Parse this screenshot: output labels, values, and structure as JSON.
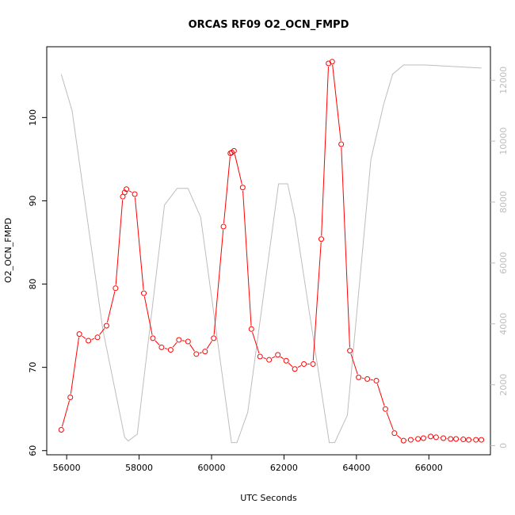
{
  "chart_data": {
    "type": "line",
    "title": "ORCAS RF09 O2_OCN_FMPD",
    "xlabel": "UTC Seconds",
    "ylabel": "O2_OCN_FMPD",
    "xlim": [
      55450,
      67700
    ],
    "ylim": [
      59.5,
      108.5
    ],
    "y2lim": [
      -300,
      13100
    ],
    "x_ticks": [
      56000,
      58000,
      60000,
      62000,
      64000,
      66000
    ],
    "y_ticks": [
      60,
      70,
      80,
      90,
      100
    ],
    "y2_ticks": [
      0,
      2000,
      4000,
      6000,
      8000,
      10000,
      12000
    ],
    "grid": false,
    "series": [
      {
        "color": "#ff0000",
        "marker": "circle-open",
        "x": [
          55850,
          56100,
          56350,
          56600,
          56850,
          57100,
          57350,
          57550,
          57600,
          57650,
          57880,
          58130,
          58380,
          58620,
          58870,
          59100,
          59350,
          59580,
          59820,
          60060,
          60330,
          60520,
          60560,
          60620,
          60860,
          61100,
          61340,
          61590,
          61830,
          62060,
          62300,
          62550,
          62800,
          63030,
          63230,
          63330,
          63580,
          63820,
          64060,
          64300,
          64550,
          64800,
          65050,
          65300,
          65500,
          65700,
          65850,
          66050,
          66200,
          66400,
          66600,
          66750,
          66950,
          67100,
          67300,
          67450
        ],
        "values": [
          62.5,
          66.4,
          74.0,
          73.2,
          73.6,
          75.0,
          79.5,
          90.5,
          91.0,
          91.4,
          90.8,
          78.9,
          73.5,
          72.4,
          72.1,
          73.3,
          73.1,
          71.6,
          71.9,
          73.5,
          86.9,
          95.7,
          95.8,
          96.0,
          91.6,
          74.6,
          71.3,
          70.9,
          71.5,
          70.8,
          69.8,
          70.4,
          70.4,
          85.4,
          106.5,
          106.7,
          96.8,
          72.0,
          68.8,
          68.6,
          68.4,
          65.0,
          62.1,
          61.2,
          61.3,
          61.4,
          61.5,
          61.7,
          61.6,
          61.5,
          61.4,
          61.4,
          61.35,
          61.3,
          61.3,
          61.3
        ]
      },
      {
        "color": "#bdbdbd",
        "axis": "right",
        "x": [
          55850,
          56150,
          57000,
          57600,
          57700,
          57950,
          58700,
          59050,
          59350,
          59700,
          60550,
          60700,
          61000,
          61850,
          62100,
          62300,
          63250,
          63400,
          63750,
          64400,
          64750,
          65000,
          65300,
          65900,
          67450
        ],
        "values": [
          12200,
          11000,
          3800,
          280,
          150,
          380,
          7900,
          8450,
          8450,
          7500,
          100,
          100,
          1100,
          8600,
          8600,
          7500,
          100,
          100,
          1000,
          9400,
          11200,
          12200,
          12500,
          12500,
          12400
        ]
      }
    ]
  }
}
